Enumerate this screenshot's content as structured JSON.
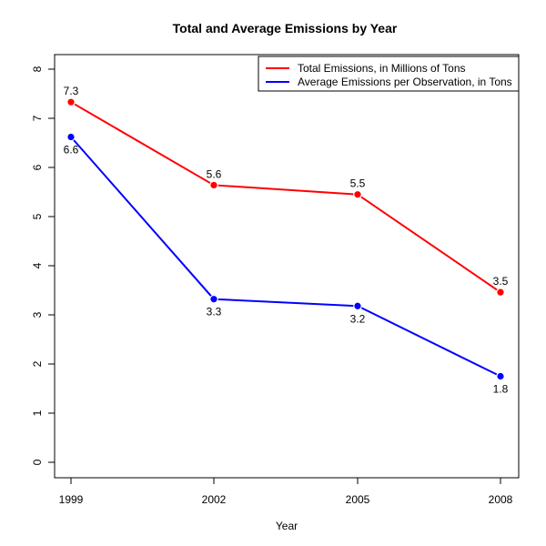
{
  "chart_data": {
    "type": "line",
    "title": "Total and Average Emissions by Year",
    "xlabel": "Year",
    "ylabel": "",
    "categories": [
      "1999",
      "2002",
      "2005",
      "2008"
    ],
    "ylim": [
      0,
      8
    ],
    "yticks": [
      "0",
      "1",
      "2",
      "3",
      "4",
      "5",
      "6",
      "7",
      "8"
    ],
    "grid": false,
    "legend_position": "top-right",
    "series": [
      {
        "name": "Total Emissions, in Millions of Tons",
        "color": "#ff0000",
        "values": [
          7.33,
          5.64,
          5.45,
          3.46
        ],
        "labels": [
          "7.3",
          "5.6",
          "5.5",
          "3.5"
        ],
        "label_position": "above"
      },
      {
        "name": "Average Emissions per Observation, in Tons",
        "color": "#0000ff",
        "values": [
          6.62,
          3.32,
          3.18,
          1.75
        ],
        "labels": [
          "6.6",
          "3.3",
          "3.2",
          "1.8"
        ],
        "label_position": "below"
      }
    ]
  }
}
